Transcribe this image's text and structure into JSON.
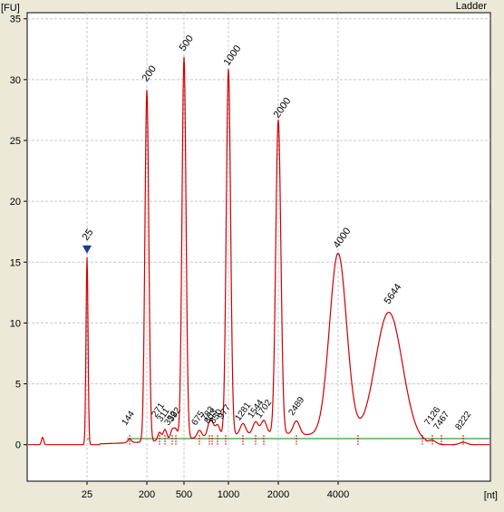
{
  "chart_data": {
    "type": "line",
    "title": "Ladder",
    "ylabel": "[FU]",
    "xlabel": "[nt]",
    "ylim": [
      -3,
      35.5
    ],
    "grid": true,
    "x_axis_scale": "categorical-log-like",
    "x_tick_labels": [
      "25",
      "200",
      "500",
      "1000",
      "2000",
      "4000"
    ],
    "y_ticks": [
      0,
      5,
      10,
      15,
      20,
      25,
      30,
      35
    ],
    "major_peaks": [
      {
        "label": "25",
        "x": "25",
        "fu": 16.0,
        "color": "#1a9a1a",
        "marker": "triangle-down"
      },
      {
        "label": "200",
        "x": "200",
        "fu": 29.5
      },
      {
        "label": "500",
        "x": "500",
        "fu": 32.0
      },
      {
        "label": "1000",
        "x": "1000",
        "fu": 30.8
      },
      {
        "label": "2000",
        "x": "2000",
        "fu": 26.5
      },
      {
        "label": "4000",
        "x": "4000",
        "fu": 15.8
      },
      {
        "label": "5644",
        "x": "5644",
        "fu": 11.2
      }
    ],
    "minor_peak_labels": [
      "144",
      "271",
      "311",
      "392",
      "352",
      "675",
      "783",
      "803",
      "850",
      "977",
      "1281",
      "1544",
      "1702",
      "2489",
      "7126",
      "7467",
      "8222"
    ],
    "series": [
      {
        "values": [],
        "color": "#d00000"
      }
    ],
    "baseline_color": "#008a00"
  }
}
